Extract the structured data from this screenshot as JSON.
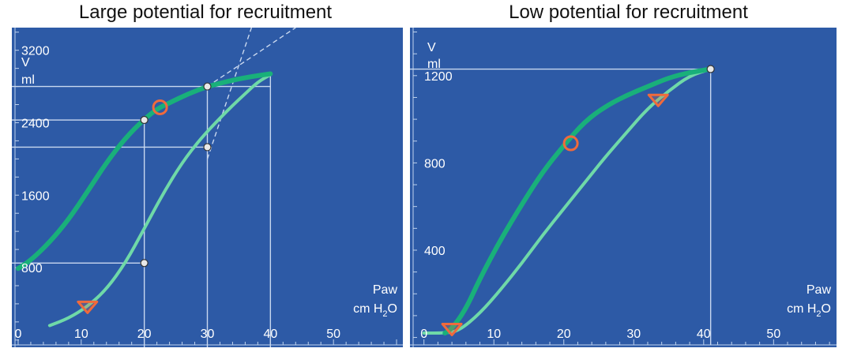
{
  "panels": [
    {
      "title": "Large potential for recruitment",
      "chart_data": {
        "type": "line",
        "title": "Large potential for recruitment",
        "xlabel": "Paw cm H2O",
        "xlabel_line1": "Paw",
        "xlabel_line2_prefix": "cm H",
        "xlabel_line2_sub": "2",
        "xlabel_line2_suffix": "O",
        "ylabel": "V ml",
        "ylabel_line1": "V",
        "ylabel_line2": "ml",
        "xlim": [
          -1,
          61
        ],
        "ylim": [
          -80,
          3450
        ],
        "x_ticks": [
          0,
          10,
          20,
          30,
          40,
          50
        ],
        "y_ticks": [
          800,
          1600,
          2400,
          3200
        ],
        "background": "#2d5aa6",
        "series": [
          {
            "role": "inflation",
            "color": "#6fd9a8",
            "width": 4,
            "x": [
              5,
              8,
              11,
              14,
              17,
              20,
              23,
              26,
              29,
              32,
              34,
              36,
              38,
              40
            ],
            "y": [
              160,
              240,
              370,
              560,
              850,
              1230,
              1620,
              1960,
              2230,
              2450,
              2590,
              2720,
              2850,
              2930
            ]
          },
          {
            "role": "deflation",
            "color": "#19b07a",
            "width": 6,
            "x": [
              40,
              37,
              34,
              30,
              27,
              24,
              22,
              20,
              17,
              14,
              11,
              8,
              5,
              2,
              0
            ],
            "y": [
              2940,
              2910,
              2870,
              2800,
              2720,
              2620,
              2550,
              2440,
              2230,
              1960,
              1640,
              1330,
              1080,
              880,
              790
            ]
          }
        ],
        "tangents": [
          {
            "x": [
              30,
              37
            ],
            "y": [
              2000,
              3450
            ]
          },
          {
            "x": [
              30,
              44
            ],
            "y": [
              2800,
              3450
            ]
          }
        ],
        "guides": [
          {
            "kind": "h",
            "y": 2800,
            "x0": 0,
            "x1": 40
          },
          {
            "kind": "h",
            "y": 2430,
            "x0": 0,
            "x1": 20
          },
          {
            "kind": "h",
            "y": 2130,
            "x0": 0,
            "x1": 30
          },
          {
            "kind": "h",
            "y": 850,
            "x0": 0,
            "x1": 20
          },
          {
            "kind": "v",
            "x": 20,
            "y0": 0,
            "y1": 2430
          },
          {
            "kind": "v",
            "x": 30,
            "y0": 0,
            "y1": 2800
          },
          {
            "kind": "v",
            "x": 40,
            "y0": 0,
            "y1": 2940
          }
        ],
        "points": [
          {
            "x": 30,
            "y": 2800
          },
          {
            "x": 20,
            "y": 2430
          },
          {
            "x": 30,
            "y": 2130
          },
          {
            "x": 20,
            "y": 850
          }
        ],
        "circle_markers": [
          {
            "x": 22.5,
            "y": 2570
          }
        ],
        "triangle_markers": [
          {
            "x": 11,
            "y": 370
          }
        ]
      }
    },
    {
      "title": "Low potential for recruitment",
      "chart_data": {
        "type": "line",
        "title": "Low potential for recruitment",
        "xlabel": "Paw cm H2O",
        "xlabel_line1": "Paw",
        "xlabel_line2_prefix": "cm H",
        "xlabel_line2_sub": "2",
        "xlabel_line2_suffix": "O",
        "ylabel": "V ml",
        "ylabel_line1": "V",
        "ylabel_line2": "ml",
        "xlim": [
          -2,
          59
        ],
        "ylim": [
          -45,
          1420
        ],
        "x_ticks": [
          0,
          10,
          20,
          30,
          40,
          50
        ],
        "y_ticks": [
          400,
          800,
          1200
        ],
        "background": "#2d5aa6",
        "series": [
          {
            "role": "inflation",
            "color": "#6fd9a8",
            "width": 4,
            "x": [
              0,
              3,
              5,
              8,
              11,
              14,
              17,
              20,
              23,
              26,
              29,
              32,
              35,
              38,
              41
            ],
            "y": [
              20,
              20,
              30,
              110,
              220,
              340,
              470,
              590,
              710,
              830,
              940,
              1050,
              1130,
              1200,
              1230
            ]
          },
          {
            "role": "deflation",
            "color": "#19b07a",
            "width": 6,
            "x": [
              41,
              38,
              35,
              32,
              29,
              26,
              23,
              20,
              17,
              14,
              11,
              8,
              6,
              4,
              3
            ],
            "y": [
              1230,
              1215,
              1190,
              1150,
              1110,
              1060,
              990,
              880,
              760,
              610,
              450,
              270,
              130,
              40,
              20
            ]
          }
        ],
        "tangents": [],
        "guides": [
          {
            "kind": "h",
            "y": 1230,
            "x0": 0,
            "x1": 41
          },
          {
            "kind": "v",
            "x": 41,
            "y0": 0,
            "y1": 1230
          }
        ],
        "points": [
          {
            "x": 41,
            "y": 1230
          }
        ],
        "circle_markers": [
          {
            "x": 21,
            "y": 890
          }
        ],
        "triangle_markers": [
          {
            "x": 4,
            "y": 40
          },
          {
            "x": 33.5,
            "y": 1090
          }
        ]
      }
    }
  ]
}
